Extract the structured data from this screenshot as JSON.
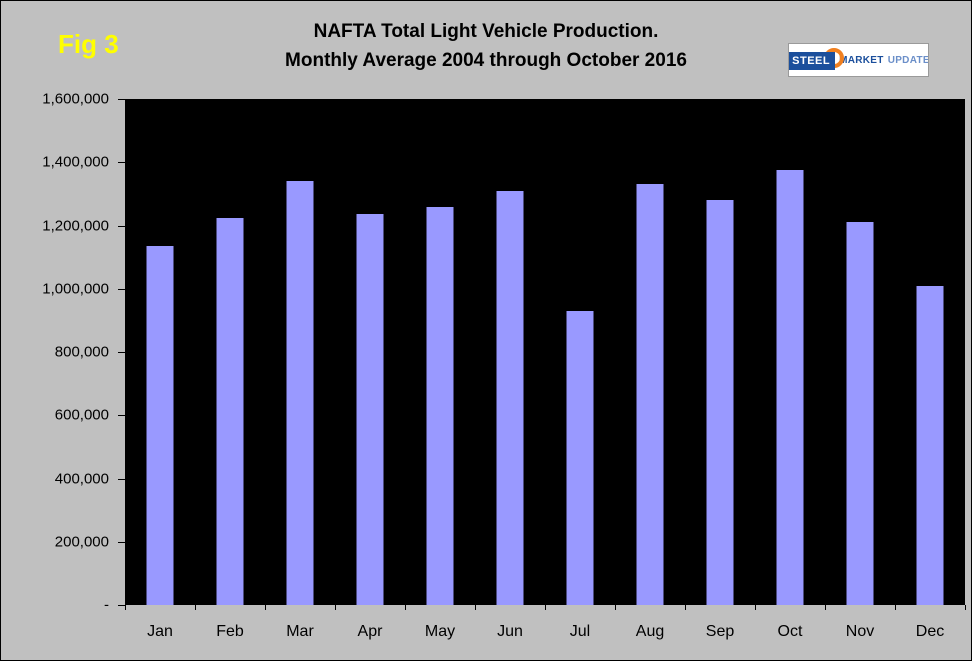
{
  "figure_label": "Fig 3",
  "title_line1": "NAFTA Total Light Vehicle Production.",
  "title_line2": "Monthly Average 2004 through October 2016",
  "logo": {
    "steel": "STEEL",
    "market": "MARKET",
    "update": "UPDATE"
  },
  "colors": {
    "background": "#c0c0c0",
    "plot_bg": "#000000",
    "bar": "#9999ff",
    "fig_label": "#ffff00",
    "logo_blue": "#1b4f9c",
    "logo_orange": "#f08020"
  },
  "chart_data": {
    "type": "bar",
    "title": "NAFTA Total Light Vehicle Production. Monthly Average 2004 through October 2016",
    "categories": [
      "Jan",
      "Feb",
      "Mar",
      "Apr",
      "May",
      "Jun",
      "Jul",
      "Aug",
      "Sep",
      "Oct",
      "Nov",
      "Dec"
    ],
    "values": [
      1135000,
      1225000,
      1340000,
      1235000,
      1260000,
      1310000,
      930000,
      1330000,
      1280000,
      1375000,
      1210000,
      1010000
    ],
    "xlabel": "",
    "ylabel": "",
    "ylim": [
      0,
      1600000
    ],
    "ytick_interval": 200000,
    "ytick_labels": [
      "-",
      "200,000",
      "400,000",
      "600,000",
      "800,000",
      "1,000,000",
      "1,200,000",
      "1,400,000",
      "1,600,000"
    ],
    "grid": false,
    "legend": "none",
    "plot_background": "black",
    "bar_color": "#9999ff"
  }
}
